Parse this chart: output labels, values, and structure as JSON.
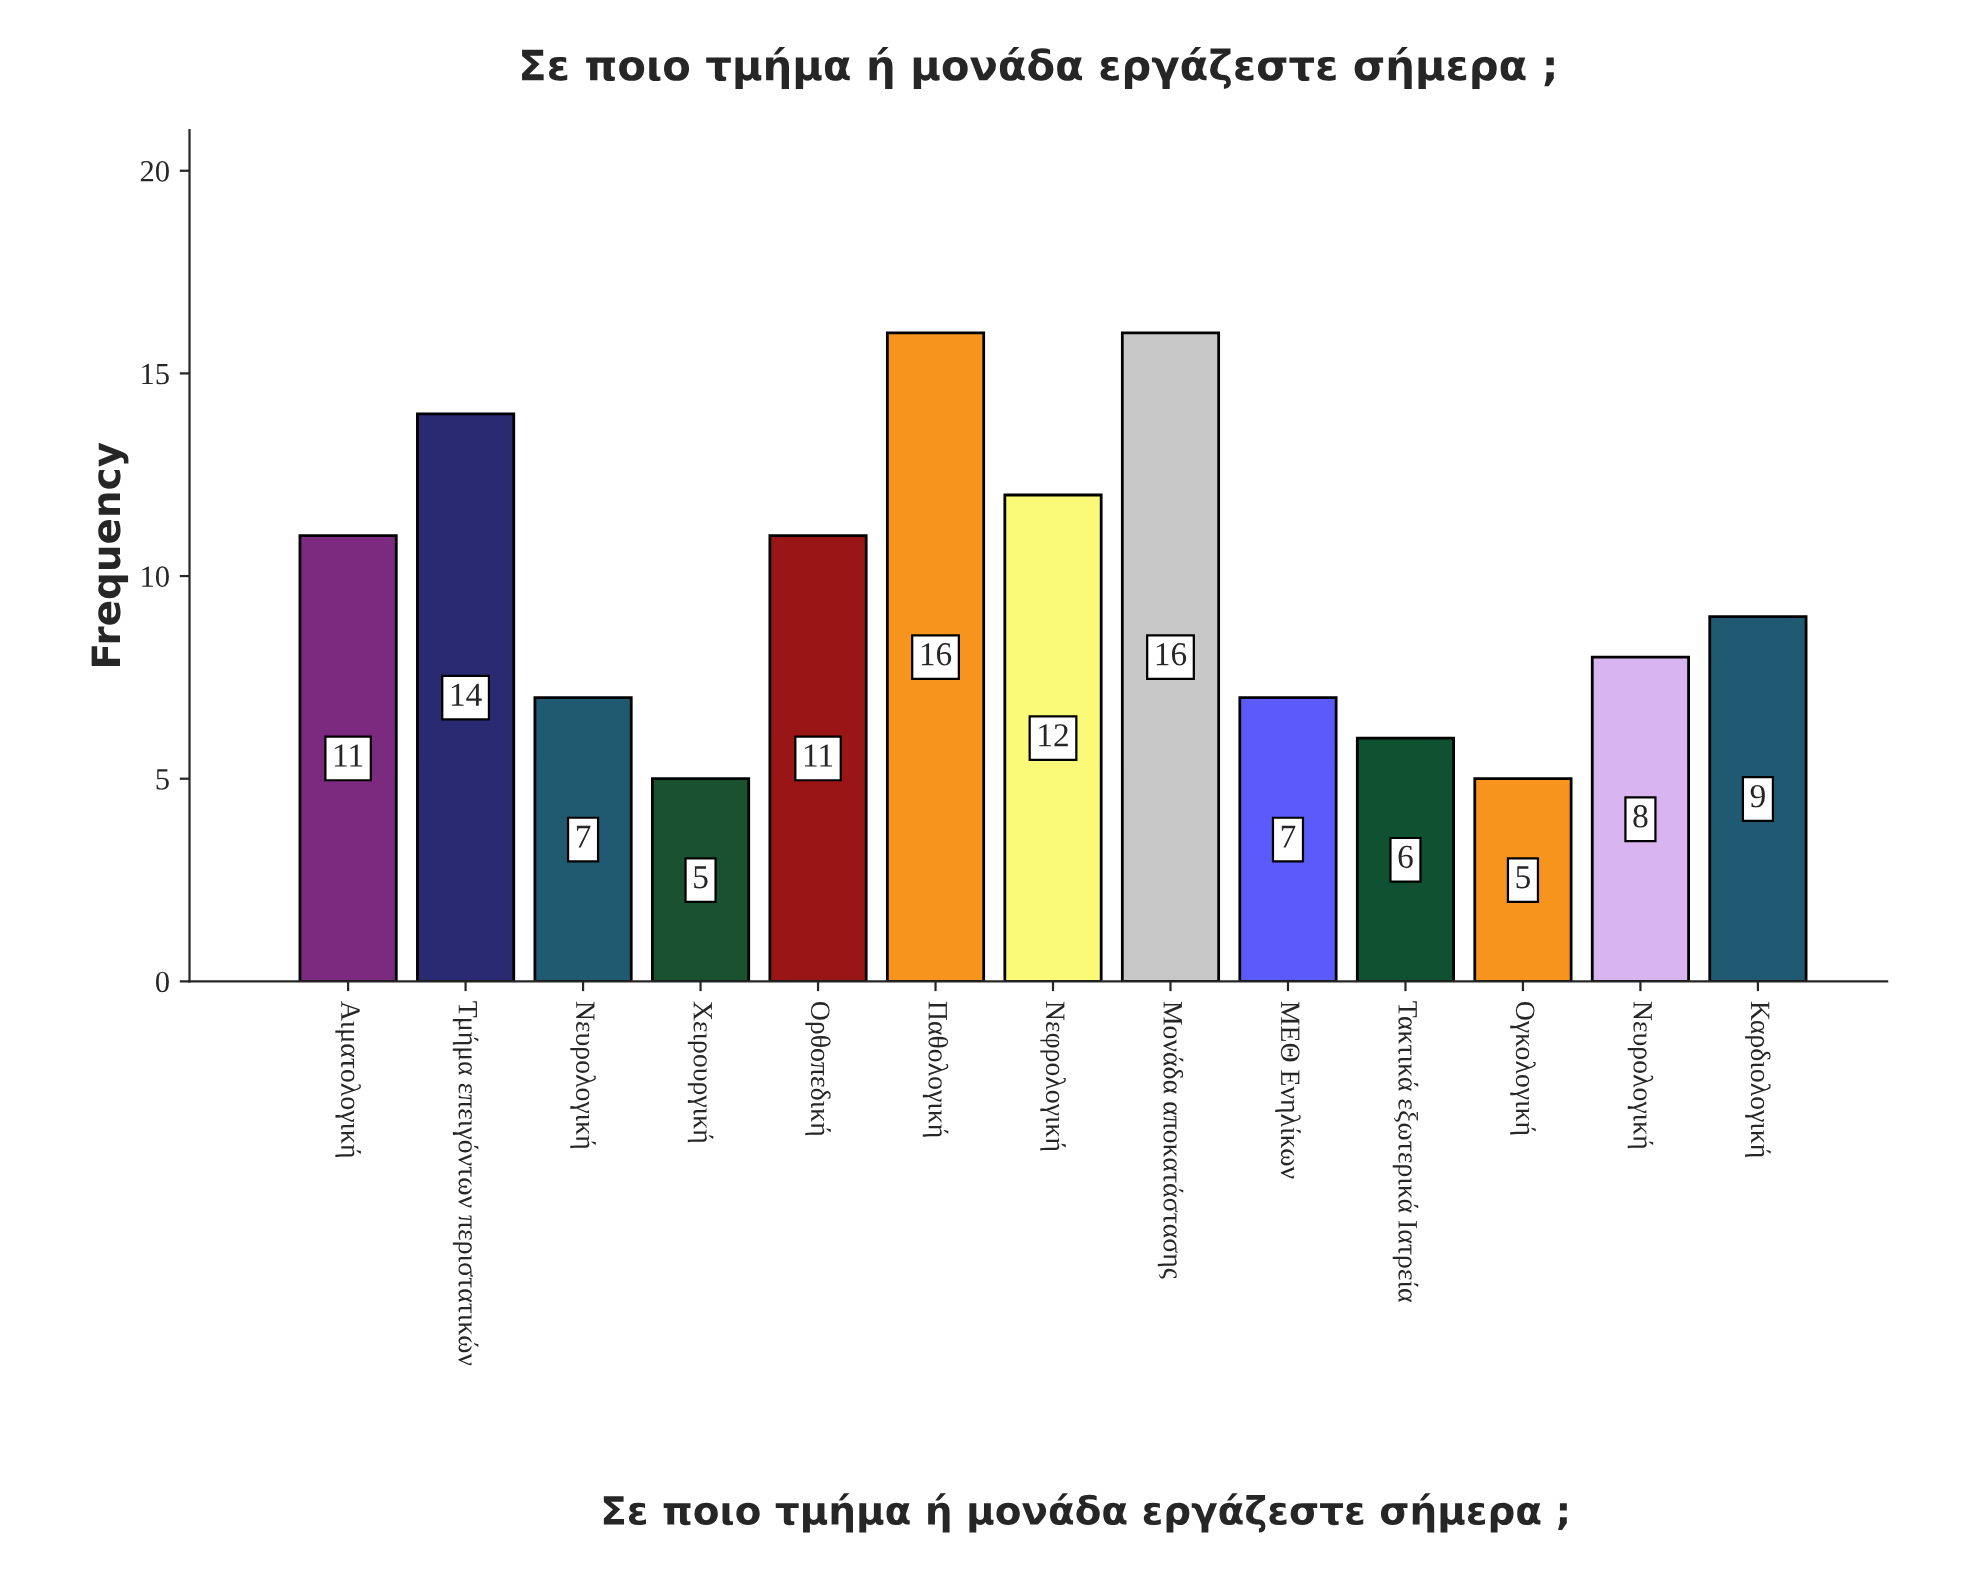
{
  "chart_data": {
    "type": "bar",
    "title": "Σε ποιο τμήμα ή μονάδα εργάζεστε σήμερα ;",
    "xlabel": "Σε ποιο τμήμα ή μονάδα εργάζεστε σήμερα ;",
    "ylabel": "Frequency",
    "categories": [
      "Αιματολογική",
      "Τμήμα επειγόντων περιστατικών",
      "Νευρολογική",
      "Χειρουργική",
      "Ορθοπεδική",
      "Παθολογική",
      "Νεφρολογική",
      "Μονάδα αποκατάστασης",
      "ΜΕΘ Ενηλίκων",
      "Τακτικά εξωτερικά Ιατρεία",
      "Ογκολογική",
      "Νευρολογική",
      "Καρδιολογική"
    ],
    "values": [
      11,
      14,
      7,
      5,
      11,
      16,
      12,
      16,
      7,
      6,
      5,
      8,
      9
    ],
    "colors": [
      "#7b2a80",
      "#2a2a72",
      "#1f5a70",
      "#1a5230",
      "#9a1616",
      "#f7941d",
      "#fafa78",
      "#c8c8c8",
      "#5b5bfb",
      "#0f5130",
      "#f7941d",
      "#d8b4f0",
      "#1f5a72"
    ],
    "ylim": [
      0,
      21
    ],
    "yticks": [
      0,
      5,
      10,
      15,
      20
    ],
    "data_labels": true,
    "grid": false,
    "legend": false
  }
}
